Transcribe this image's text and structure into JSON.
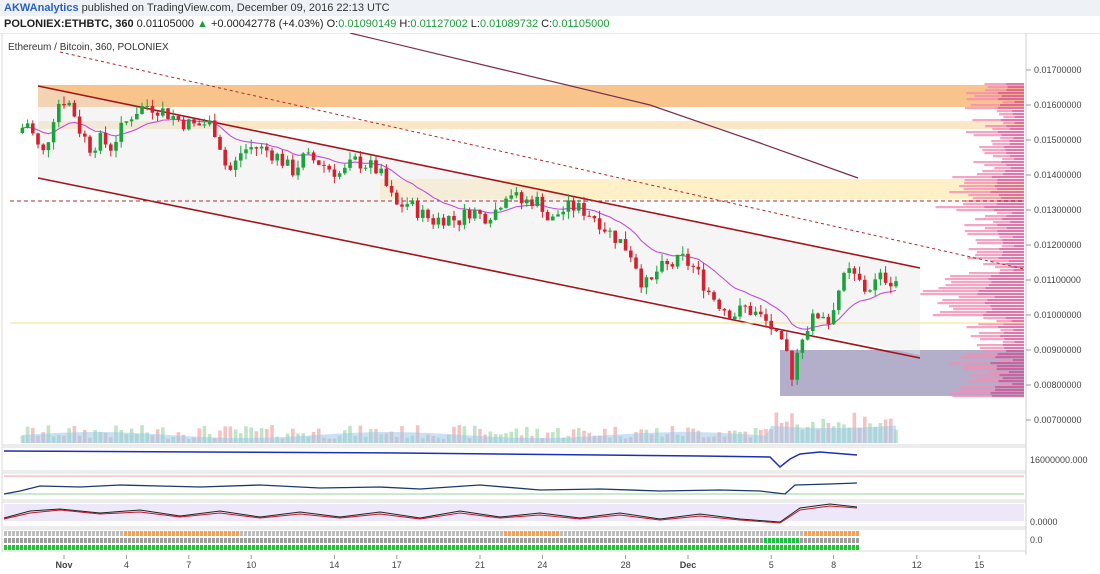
{
  "header": {
    "publisher": "AKWAnalytics",
    "published_text": "published on TradingView.com, December 09, 2016 22:13 UTC"
  },
  "ticker": {
    "symbol": "POLONIEX:ETHBTC, 360",
    "last": "0.01105000",
    "change": "+0.00042778 (+4.03%)",
    "open_label": "O:",
    "open": "0.01090149",
    "high_label": "H:",
    "high": "0.01127002",
    "low_label": "L:",
    "low": "0.01089732",
    "close_label": "C:",
    "close": "0.01105000"
  },
  "colors": {
    "up": "#1aa33b",
    "down": "#d3212d",
    "channel": "#a3151d",
    "orange_zone": "#f9c48b",
    "yellow_zone": "#fff0c8",
    "purple_zone": "#9a93b8",
    "ma_long": "#7b2c4a",
    "ema": "#c24fd6"
  },
  "chart_data": {
    "type": "candlestick",
    "title": "Ethereum / Bitcoin, 360, POLONIEX",
    "x_ticks": [
      {
        "label": "Nov",
        "day": 1
      },
      {
        "label": "4",
        "day": 4
      },
      {
        "label": "7",
        "day": 7
      },
      {
        "label": "10",
        "day": 10
      },
      {
        "label": "14",
        "day": 14
      },
      {
        "label": "17",
        "day": 17
      },
      {
        "label": "21",
        "day": 21
      },
      {
        "label": "24",
        "day": 24
      },
      {
        "label": "28",
        "day": 28
      },
      {
        "label": "Dec",
        "day": 31
      },
      {
        "label": "5",
        "day": 35
      },
      {
        "label": "8",
        "day": 38
      },
      {
        "label": "12",
        "day": 42
      },
      {
        "label": "15",
        "day": 45
      }
    ],
    "y_ticks": [
      "0.01700000",
      "0.01600000",
      "0.01500000",
      "0.01400000",
      "0.01300000",
      "0.01200000",
      "0.01100000",
      "0.01000000",
      "0.00900000",
      "0.00800000",
      "0.00700000"
    ],
    "ylim": [
      0.0062,
      0.0177
    ],
    "volume_axis_label": "16000000.000",
    "osc_axis_label_1": "0.0000",
    "osc_axis_label_2": "0.0",
    "price_path": [
      [
        -1.0,
        0.0152
      ],
      [
        -0.5,
        0.0155
      ],
      [
        0.0,
        0.0148
      ],
      [
        0.3,
        0.0146
      ],
      [
        0.8,
        0.0158
      ],
      [
        1.1,
        0.0162
      ],
      [
        1.6,
        0.016
      ],
      [
        2.0,
        0.0153
      ],
      [
        2.5,
        0.0148
      ],
      [
        3.0,
        0.015
      ],
      [
        3.5,
        0.0148
      ],
      [
        4.0,
        0.0153
      ],
      [
        4.6,
        0.0158
      ],
      [
        5.2,
        0.016
      ],
      [
        5.8,
        0.0159
      ],
      [
        6.4,
        0.0157
      ],
      [
        7.0,
        0.0155
      ],
      [
        7.6,
        0.0154
      ],
      [
        8.2,
        0.0155
      ],
      [
        8.6,
        0.0152
      ],
      [
        9.0,
        0.0143
      ],
      [
        9.3,
        0.0141
      ],
      [
        9.8,
        0.0147
      ],
      [
        10.4,
        0.0148
      ],
      [
        11.0,
        0.0147
      ],
      [
        11.6,
        0.0145
      ],
      [
        12.2,
        0.0141
      ],
      [
        12.8,
        0.0145
      ],
      [
        13.4,
        0.0144
      ],
      [
        14.0,
        0.0142
      ],
      [
        14.6,
        0.014
      ],
      [
        15.2,
        0.0144
      ],
      [
        15.8,
        0.0143
      ],
      [
        16.4,
        0.0141
      ],
      [
        16.8,
        0.0136
      ],
      [
        17.2,
        0.0131
      ],
      [
        17.8,
        0.0132
      ],
      [
        18.4,
        0.0129
      ],
      [
        19.0,
        0.0127
      ],
      [
        19.6,
        0.0128
      ],
      [
        20.2,
        0.0127
      ],
      [
        20.8,
        0.013
      ],
      [
        21.4,
        0.0128
      ],
      [
        22.0,
        0.013
      ],
      [
        22.6,
        0.0136
      ],
      [
        23.2,
        0.0132
      ],
      [
        23.8,
        0.0133
      ],
      [
        24.2,
        0.0132
      ],
      [
        24.6,
        0.0126
      ],
      [
        25.0,
        0.0129
      ],
      [
        25.6,
        0.0131
      ],
      [
        26.2,
        0.013
      ],
      [
        26.8,
        0.0128
      ],
      [
        27.4,
        0.0124
      ],
      [
        28.0,
        0.0121
      ],
      [
        28.6,
        0.0117
      ],
      [
        29.0,
        0.011
      ],
      [
        29.4,
        0.0108
      ],
      [
        29.8,
        0.0113
      ],
      [
        30.4,
        0.0114
      ],
      [
        31.0,
        0.0116
      ],
      [
        31.6,
        0.0113
      ],
      [
        32.2,
        0.0107
      ],
      [
        32.8,
        0.0103
      ],
      [
        33.4,
        0.01
      ],
      [
        34.0,
        0.0102
      ],
      [
        34.6,
        0.01
      ],
      [
        35.2,
        0.0097
      ],
      [
        35.6,
        0.0092
      ],
      [
        36.0,
        0.0089
      ],
      [
        36.3,
        0.0082
      ],
      [
        36.6,
        0.0093
      ],
      [
        36.9,
        0.0096
      ],
      [
        37.3,
        0.0099
      ],
      [
        37.7,
        0.0101
      ],
      [
        38.0,
        0.0098
      ],
      [
        38.3,
        0.0104
      ],
      [
        38.6,
        0.0109
      ],
      [
        39.0,
        0.0112
      ],
      [
        39.4,
        0.011
      ],
      [
        39.8,
        0.0107
      ],
      [
        40.2,
        0.0109
      ],
      [
        40.6,
        0.0111
      ],
      [
        41.0,
        0.011
      ]
    ]
  }
}
